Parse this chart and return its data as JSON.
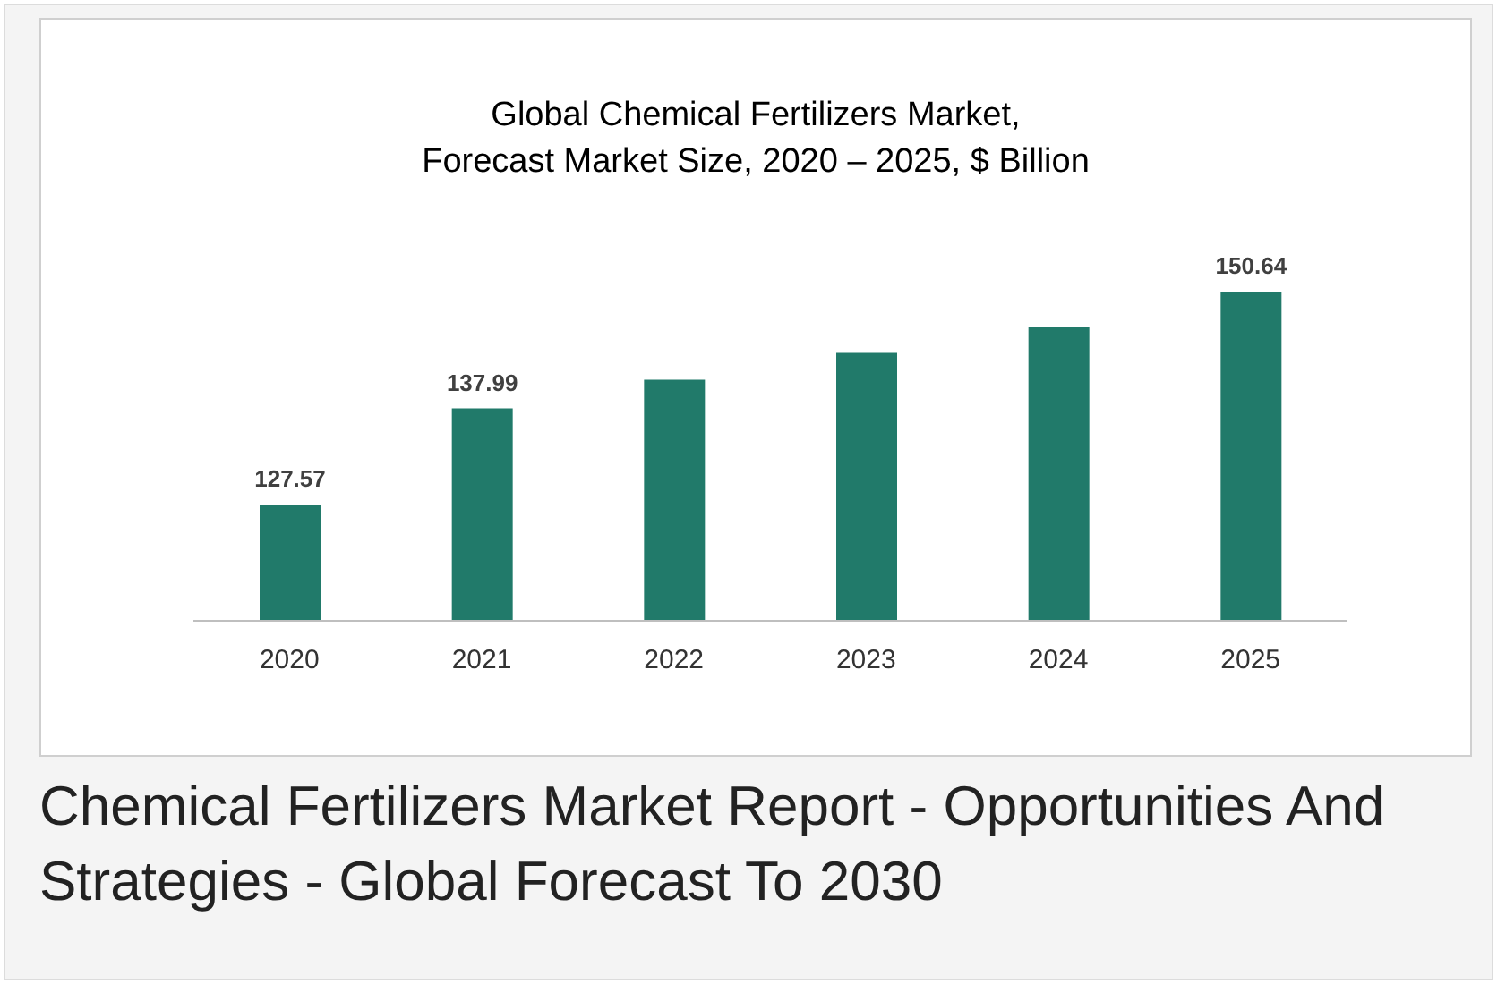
{
  "chart_data": {
    "type": "bar",
    "title": "Global Chemical Fertilizers Market,\nForecast Market Size, 2020 – 2025, $ Billion",
    "categories": [
      "2020",
      "2021",
      "2022",
      "2023",
      "2024",
      "2025"
    ],
    "values": [
      127.57,
      137.99,
      141.1,
      144.0,
      146.8,
      150.64
    ],
    "value_labels": [
      "127.57",
      "137.99",
      null,
      null,
      null,
      "150.64"
    ],
    "color": "#217a6a",
    "ylim": [
      115,
      150.64
    ],
    "tick_labels": "x",
    "grid": false,
    "legend": false,
    "annotations": [
      "Chemical Fertilizers Market Report - Opportunities And Strategies - Global Forecast To 2030"
    ]
  }
}
